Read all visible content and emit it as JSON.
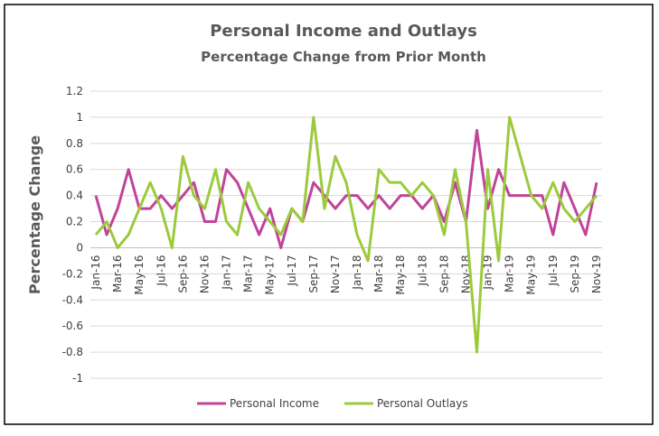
{
  "chart_data": {
    "type": "line",
    "title": "Personal Income and Outlays",
    "subtitle": "Percentage Change from Prior Month",
    "y_label": "Percentage Change",
    "categories": [
      "Jan-16",
      null,
      "Mar-16",
      null,
      "May-16",
      null,
      "Jul-16",
      null,
      "Sep-16",
      null,
      "Nov-16",
      null,
      "Jan-17",
      null,
      "Mar-17",
      null,
      "May-17",
      null,
      "Jul-17",
      null,
      "Sep-17",
      null,
      "Nov-17",
      null,
      "Jan-18",
      null,
      "Mar-18",
      null,
      "May-18",
      null,
      "Jul-18",
      null,
      "Sep-18",
      null,
      "Nov-18",
      null,
      "Jan-19",
      null,
      "Mar-19",
      null,
      "May-19",
      null,
      "Jul-19",
      null,
      "Sep-19",
      null,
      "Nov-19"
    ],
    "series": [
      {
        "name": "Personal Income",
        "color": "#c0449a",
        "values": [
          0.4,
          0.1,
          0.3,
          0.6,
          0.3,
          0.3,
          0.4,
          0.3,
          0.4,
          0.5,
          0.2,
          0.2,
          0.6,
          0.5,
          0.3,
          0.1,
          0.3,
          0.0,
          0.3,
          0.2,
          0.5,
          0.4,
          0.3,
          0.4,
          0.4,
          0.3,
          0.4,
          0.3,
          0.4,
          0.4,
          0.3,
          0.4,
          0.2,
          0.5,
          0.2,
          0.9,
          0.3,
          0.6,
          0.4,
          0.4,
          0.4,
          0.4,
          0.1,
          0.5,
          0.3,
          0.1,
          0.5
        ]
      },
      {
        "name": "Personal Outlays",
        "color": "#9bcb3c",
        "values": [
          0.1,
          0.2,
          0.0,
          0.1,
          0.3,
          0.5,
          0.3,
          0.0,
          0.7,
          0.4,
          0.3,
          0.6,
          0.2,
          0.1,
          0.5,
          0.3,
          0.2,
          0.1,
          0.3,
          0.2,
          1.0,
          0.3,
          0.7,
          0.5,
          0.1,
          -0.1,
          0.6,
          0.5,
          0.5,
          0.4,
          0.5,
          0.4,
          0.1,
          0.6,
          0.2,
          -0.8,
          0.6,
          -0.1,
          1.0,
          0.7,
          0.4,
          0.3,
          0.5,
          0.3,
          0.2,
          0.3,
          0.4
        ]
      }
    ],
    "ylim": [
      -1,
      1.2
    ],
    "yticks": [
      -1,
      -0.8,
      -0.6,
      -0.4,
      -0.2,
      0,
      0.2,
      0.4,
      0.6,
      0.8,
      1,
      1.2
    ],
    "grid": true,
    "legend": "bottom"
  }
}
